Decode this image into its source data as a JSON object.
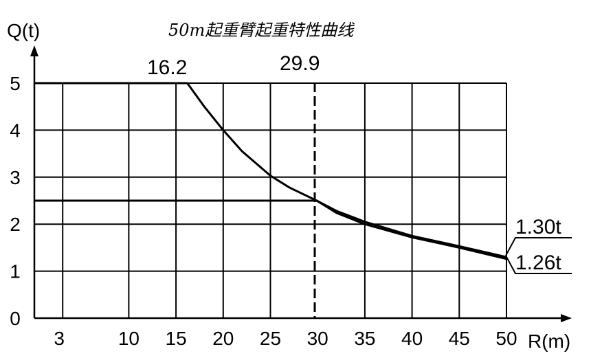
{
  "chart_data": {
    "type": "line",
    "title": "50m起重臂起重特性曲线",
    "xlabel": "R(m)",
    "ylabel": "Q(t)",
    "xlim": [
      0,
      50
    ],
    "ylim": [
      0,
      5
    ],
    "x_ticks": [
      3,
      10,
      15,
      20,
      25,
      30,
      35,
      40,
      45,
      50
    ],
    "y_ticks": [
      0,
      1,
      2,
      3,
      4,
      5
    ],
    "grid": true,
    "series": [
      {
        "name": "",
        "x": [
          0,
          16.2,
          18,
          20,
          22,
          25,
          27,
          29.9,
          32,
          35,
          40,
          45,
          50
        ],
        "y": [
          5,
          5,
          4.5,
          4.0,
          3.55,
          3.03,
          2.78,
          2.5,
          2.28,
          2.05,
          1.75,
          1.53,
          1.3
        ]
      },
      {
        "name": "",
        "x": [
          0,
          29.9,
          32,
          35,
          40,
          45,
          50
        ],
        "y": [
          2.5,
          2.5,
          2.24,
          2.0,
          1.72,
          1.5,
          1.26
        ]
      }
    ],
    "annotations": {
      "x_16_2": "16.2",
      "x_29_9": "29.9",
      "label_130": "1.30t",
      "label_126": "1.26t"
    }
  }
}
